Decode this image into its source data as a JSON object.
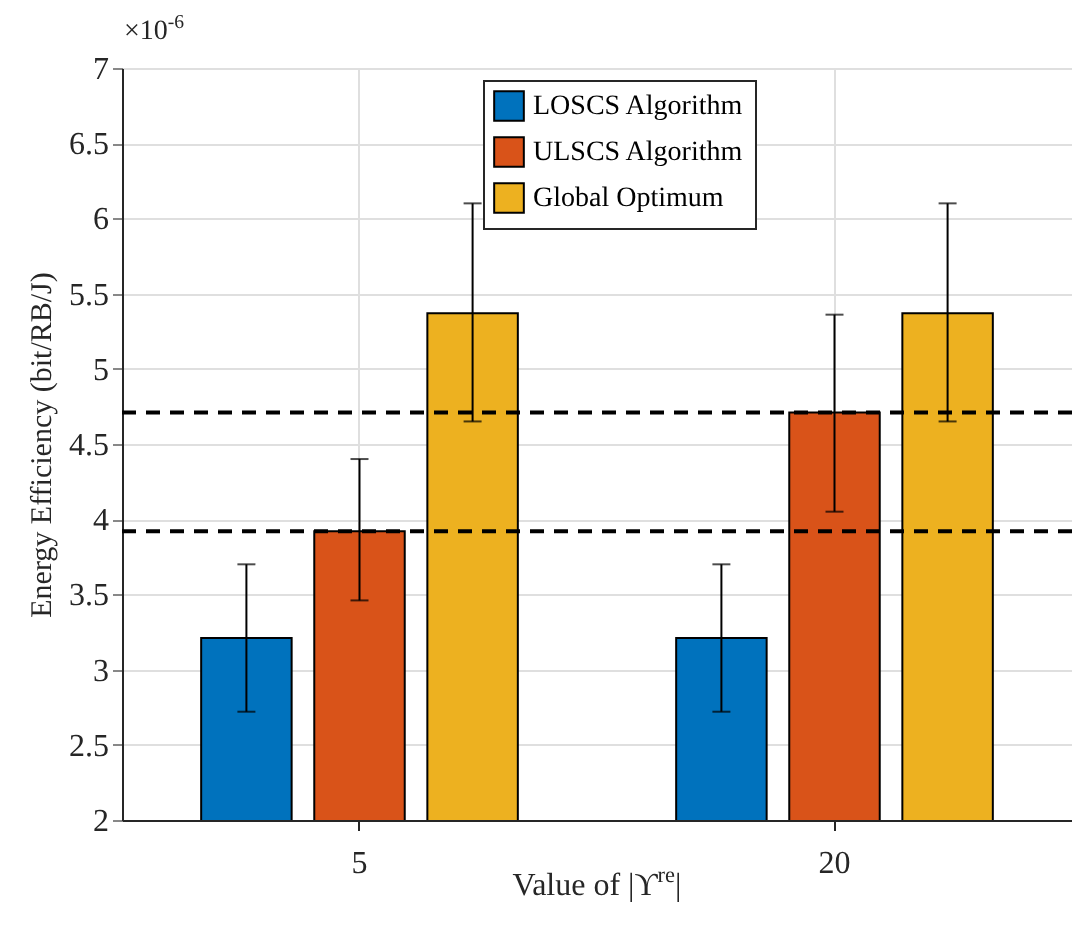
{
  "chart_data": {
    "type": "bar",
    "categories": [
      "5",
      "20"
    ],
    "series": [
      {
        "name": "LOSCS Algorithm",
        "color": "#0072bd",
        "values": [
          3.21,
          3.21
        ],
        "errors": [
          [
            2.72,
            3.7
          ],
          [
            2.72,
            3.7
          ]
        ]
      },
      {
        "name": "ULSCS Algorithm",
        "color": "#d95319",
        "values": [
          3.92,
          4.71
        ],
        "errors": [
          [
            3.46,
            4.4
          ],
          [
            4.05,
            5.36
          ]
        ]
      },
      {
        "name": "Global Optimum",
        "color": "#edb120",
        "values": [
          5.37,
          5.37
        ],
        "errors": [
          [
            4.65,
            6.1
          ],
          [
            4.65,
            6.1
          ]
        ]
      }
    ],
    "ylim": [
      2,
      7
    ],
    "yticks": [
      2,
      2.5,
      3,
      3.5,
      4,
      4.5,
      5,
      5.5,
      6,
      6.5,
      7
    ],
    "xlabel": "Value of |ϒ$^{re}$|",
    "ylabel": "Energy Efficiency (bit/RB/J)",
    "annotations": [
      "×10$^{-6}$"
    ],
    "ref_lines": [
      {
        "axis": "y",
        "value": 4.71,
        "color": "#000000",
        "line_style": "dashed"
      },
      {
        "axis": "y",
        "value": 3.92,
        "color": "#000000",
        "line_style": "dashed"
      }
    ],
    "grid": true,
    "legend": "top"
  }
}
